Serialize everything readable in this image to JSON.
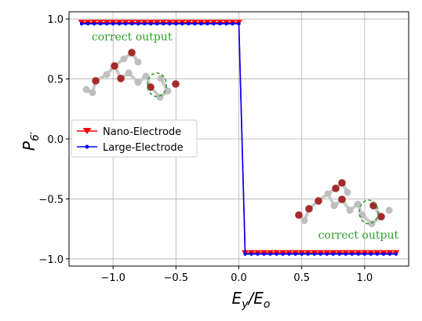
{
  "chart_data": {
    "type": "line",
    "xlabel_main": "E",
    "xlabel_sub1": "y",
    "xlabel_sep": "/E",
    "xlabel_sub2": "o",
    "ylabel_main": "P",
    "ylabel_sub": "6′",
    "xlim": [
      -1.35,
      1.35
    ],
    "ylim": [
      -1.06,
      1.06
    ],
    "xticks": [
      -1.0,
      -0.5,
      0.0,
      0.5,
      1.0
    ],
    "xtick_labels": [
      "−1.0",
      "−0.5",
      "0.0",
      "0.5",
      "1.0"
    ],
    "yticks": [
      1.0,
      0.5,
      0.0,
      -0.5,
      -1.0
    ],
    "ytick_labels": [
      "1.0",
      "0.5",
      "0.0",
      "−0.5",
      "−1.0"
    ],
    "grid": true,
    "legend_position": "center-left",
    "series": [
      {
        "name": "Nano-Electrode",
        "color": "#ff0000",
        "marker": "triangle-down",
        "x": [
          -1.25,
          -1.2,
          -1.15,
          -1.1,
          -1.05,
          -1.0,
          -0.95,
          -0.9,
          -0.85,
          -0.8,
          -0.75,
          -0.7,
          -0.65,
          -0.6,
          -0.55,
          -0.5,
          -0.45,
          -0.4,
          -0.35,
          -0.3,
          -0.25,
          -0.2,
          -0.15,
          -0.1,
          -0.05,
          0.0,
          0.05,
          0.1,
          0.15,
          0.2,
          0.25,
          0.3,
          0.35,
          0.4,
          0.45,
          0.5,
          0.55,
          0.6,
          0.65,
          0.7,
          0.75,
          0.8,
          0.85,
          0.9,
          0.95,
          1.0,
          1.05,
          1.1,
          1.15,
          1.2,
          1.25
        ],
        "y": [
          0.97,
          0.97,
          0.97,
          0.97,
          0.97,
          0.97,
          0.97,
          0.97,
          0.97,
          0.97,
          0.97,
          0.97,
          0.97,
          0.97,
          0.97,
          0.97,
          0.97,
          0.97,
          0.97,
          0.97,
          0.97,
          0.97,
          0.97,
          0.97,
          0.97,
          0.97,
          -0.95,
          -0.95,
          -0.95,
          -0.95,
          -0.95,
          -0.95,
          -0.95,
          -0.95,
          -0.95,
          -0.95,
          -0.95,
          -0.95,
          -0.95,
          -0.95,
          -0.95,
          -0.95,
          -0.95,
          -0.95,
          -0.95,
          -0.95,
          -0.95,
          -0.95,
          -0.95,
          -0.95,
          -0.95
        ]
      },
      {
        "name": "Large-Electrode",
        "color": "#0000ff",
        "marker": "dot",
        "x": [
          -1.25,
          -1.2,
          -1.15,
          -1.1,
          -1.05,
          -1.0,
          -0.95,
          -0.9,
          -0.85,
          -0.8,
          -0.75,
          -0.7,
          -0.65,
          -0.6,
          -0.55,
          -0.5,
          -0.45,
          -0.4,
          -0.35,
          -0.3,
          -0.25,
          -0.2,
          -0.15,
          -0.1,
          -0.05,
          0.0,
          0.05,
          0.1,
          0.15,
          0.2,
          0.25,
          0.3,
          0.35,
          0.4,
          0.45,
          0.5,
          0.55,
          0.6,
          0.65,
          0.7,
          0.75,
          0.8,
          0.85,
          0.9,
          0.95,
          1.0,
          1.05,
          1.1,
          1.15,
          1.2,
          1.25
        ],
        "y": [
          0.96,
          0.96,
          0.96,
          0.96,
          0.96,
          0.96,
          0.96,
          0.96,
          0.96,
          0.96,
          0.96,
          0.96,
          0.96,
          0.96,
          0.96,
          0.96,
          0.96,
          0.96,
          0.96,
          0.96,
          0.96,
          0.96,
          0.96,
          0.96,
          0.96,
          0.96,
          -0.96,
          -0.96,
          -0.96,
          -0.96,
          -0.96,
          -0.96,
          -0.96,
          -0.96,
          -0.96,
          -0.96,
          -0.96,
          -0.96,
          -0.96,
          -0.96,
          -0.96,
          -0.96,
          -0.96,
          -0.96,
          -0.96,
          -0.96,
          -0.96,
          -0.96,
          -0.96,
          -0.96,
          -0.96
        ]
      }
    ],
    "annotations": [
      {
        "text": "correct output",
        "anchor_x": -0.85,
        "anchor_y": 0.82
      },
      {
        "text": "correct output",
        "anchor_x": 0.95,
        "anchor_y": -0.83
      }
    ],
    "molecule_atom_colors": {
      "dark": "#a52a2a",
      "light": "#bfbfbf",
      "highlight": "#2ca02c"
    }
  }
}
